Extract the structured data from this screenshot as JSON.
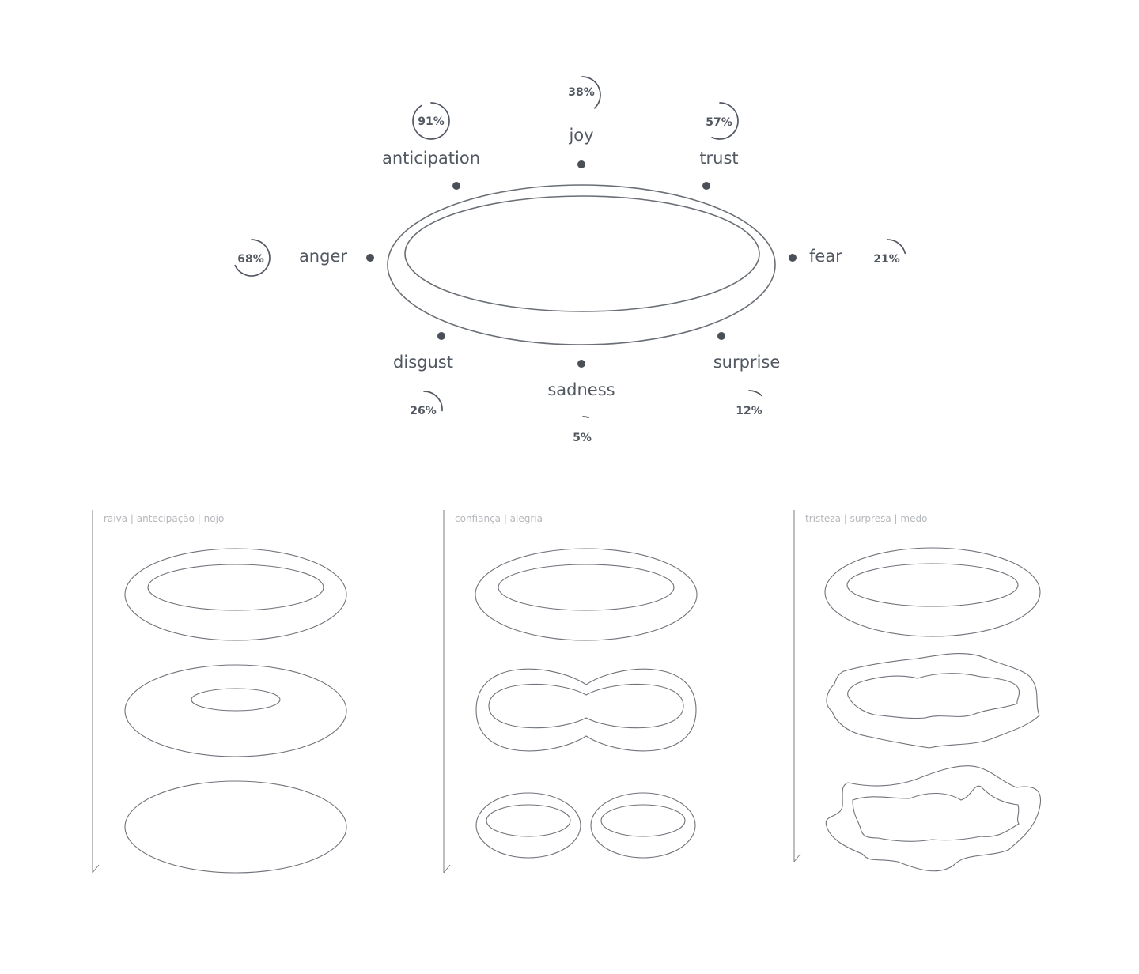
{
  "emotion_wheel": {
    "emotions": [
      {
        "key": "joy",
        "label": "joy",
        "percent": 38,
        "percent_label": "38%"
      },
      {
        "key": "trust",
        "label": "trust",
        "percent": 57,
        "percent_label": "57%"
      },
      {
        "key": "fear",
        "label": "fear",
        "percent": 21,
        "percent_label": "21%"
      },
      {
        "key": "surprise",
        "label": "surprise",
        "percent": 12,
        "percent_label": "12%"
      },
      {
        "key": "sadness",
        "label": "sadness",
        "percent": 5,
        "percent_label": "5%"
      },
      {
        "key": "disgust",
        "label": "disgust",
        "percent": 26,
        "percent_label": "26%"
      },
      {
        "key": "anger",
        "label": "anger",
        "percent": 68,
        "percent_label": "68%"
      },
      {
        "key": "anticipation",
        "label": "anticipation",
        "percent": 91,
        "percent_label": "91%"
      }
    ]
  },
  "panels": [
    {
      "caption": "raiva | antecipação | nojo"
    },
    {
      "caption": "confiança | alegria"
    },
    {
      "caption": "tristeza | surpresa | medo"
    }
  ],
  "colors": {
    "ink": "#525861",
    "caption": "#b4b7bb",
    "background": "#ffffff"
  }
}
